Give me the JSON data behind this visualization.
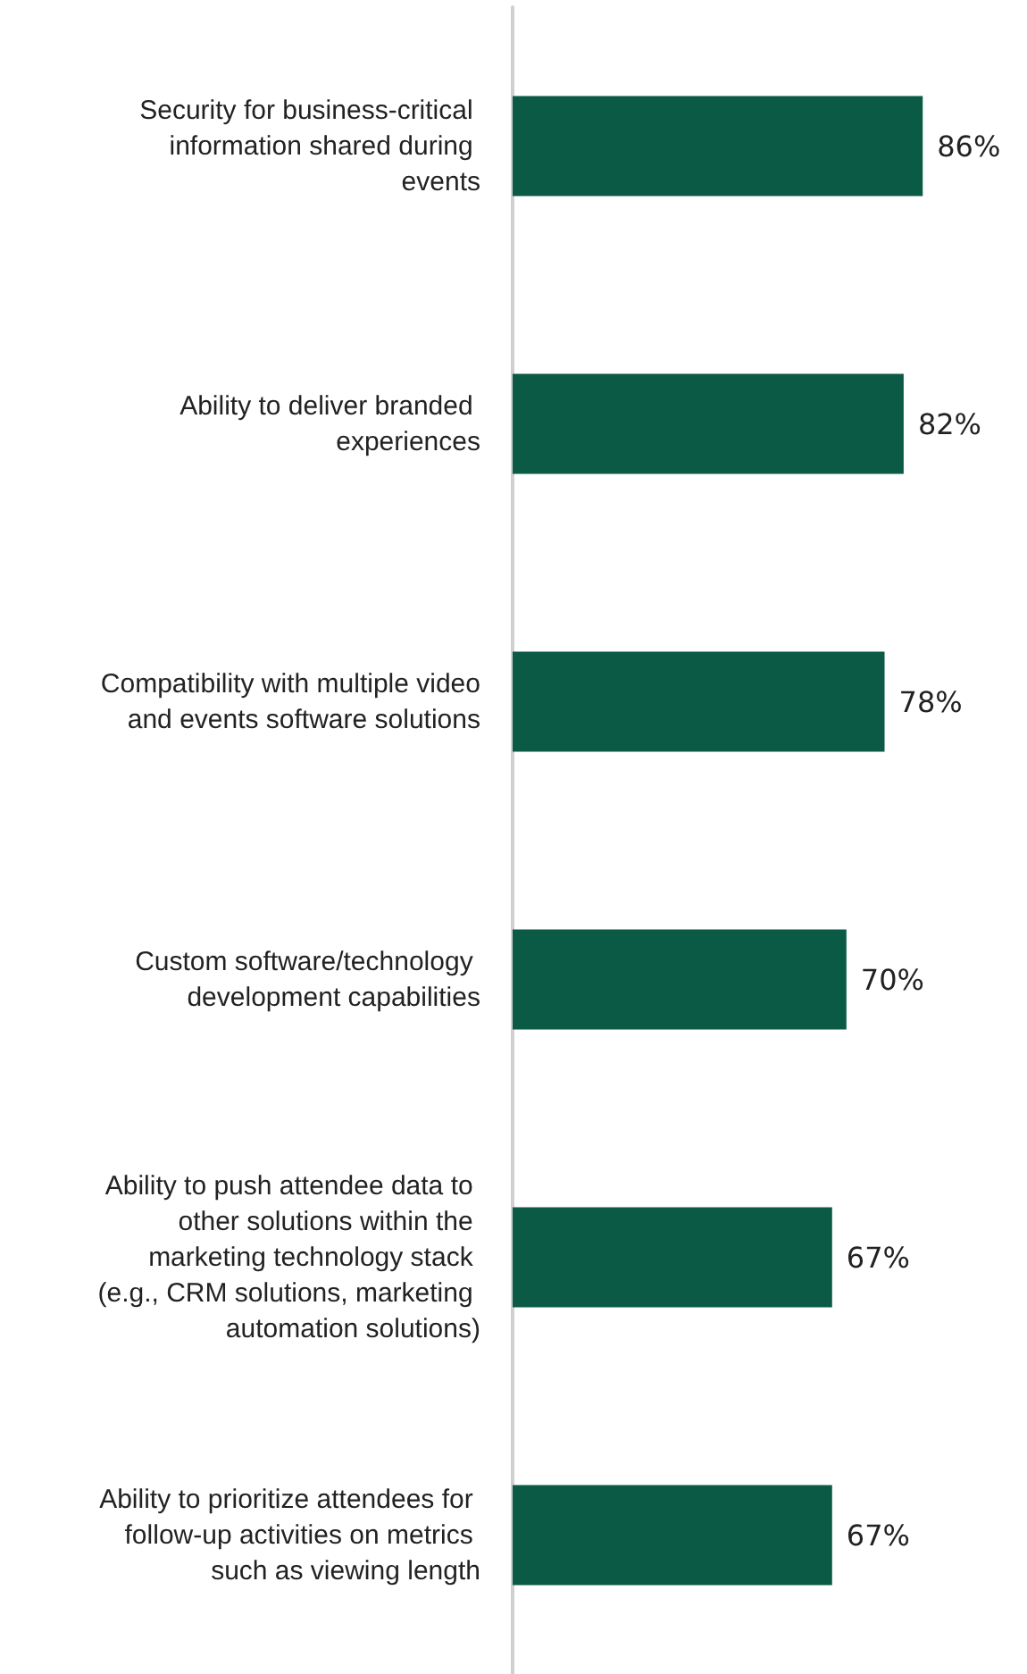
{
  "chart_data": {
    "type": "bar",
    "orientation": "horizontal",
    "categories": [
      "Security for business-critical information shared during events",
      "Ability to deliver branded experiences",
      "Compatibility with multiple video and events software solutions",
      "Custom software/technology development capabilities",
      "Ability to push attendee data to other solutions within the marketing technology stack (e.g., CRM solutions, marketing automation solutions)",
      "Ability to prioritize attendees for follow-up activities on metrics such as viewing length"
    ],
    "values": [
      86,
      82,
      78,
      70,
      67,
      67
    ],
    "value_labels": [
      "86%",
      "82%",
      "78%",
      "70%",
      "67%",
      "67%"
    ],
    "color": "#0b5a45",
    "tick_labels": "y"
  }
}
